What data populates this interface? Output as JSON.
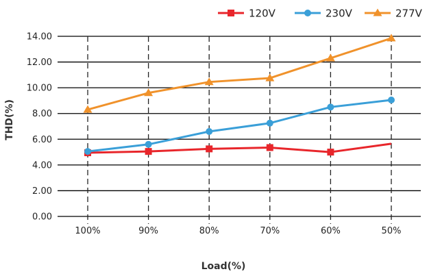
{
  "chart_data": {
    "type": "line",
    "categories": [
      "100%",
      "90%",
      "80%",
      "70%",
      "60%",
      "50%"
    ],
    "xlabel": "Load(%)",
    "ylabel": "THD(%)",
    "ylim": [
      0,
      14
    ],
    "yticks": [
      "0.00",
      "2.00",
      "4.00",
      "6.00",
      "8.00",
      "10.00",
      "12.00",
      "14.00"
    ],
    "grid": "horizontal solid, vertical dashed",
    "legend_position": "top-right",
    "series": [
      {
        "name": "120V",
        "color": "#e8262b",
        "marker": "square",
        "values": [
          4.95,
          5.05,
          5.25,
          5.35,
          5.0,
          5.65
        ]
      },
      {
        "name": "230V",
        "color": "#3a9fd8",
        "marker": "circle",
        "values": [
          5.05,
          5.6,
          6.6,
          7.25,
          8.5,
          9.05
        ]
      },
      {
        "name": "277V",
        "color": "#f0922b",
        "marker": "triangle",
        "values": [
          8.3,
          9.6,
          10.45,
          10.75,
          12.3,
          13.85
        ]
      }
    ]
  }
}
